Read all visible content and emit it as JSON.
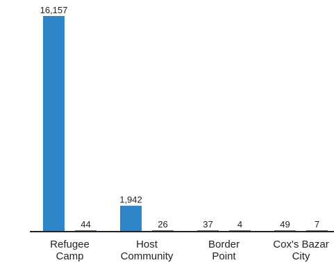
{
  "chart_data": {
    "type": "bar",
    "categories": [
      "Refugee Camp",
      "Host Community",
      "Border Point",
      "Cox's Bazar City"
    ],
    "category_lines": [
      [
        "Refugee",
        "Camp"
      ],
      [
        "Host",
        "Community"
      ],
      [
        "Border",
        "Point"
      ],
      [
        "Cox's Bazar",
        "City"
      ]
    ],
    "series": [
      {
        "values": [
          16157,
          1942,
          37,
          49
        ],
        "color": "#2e86c9"
      },
      {
        "values": [
          44,
          26,
          4,
          7
        ],
        "color": "#6e6e8a"
      }
    ],
    "value_labels": [
      [
        "16,157",
        "1,942",
        "37",
        "49"
      ],
      [
        "44",
        "26",
        "4",
        "7"
      ]
    ],
    "ylim": [
      0,
      16157
    ],
    "grid": false,
    "legend": "none",
    "title": "",
    "xlabel": "",
    "ylabel": ""
  }
}
